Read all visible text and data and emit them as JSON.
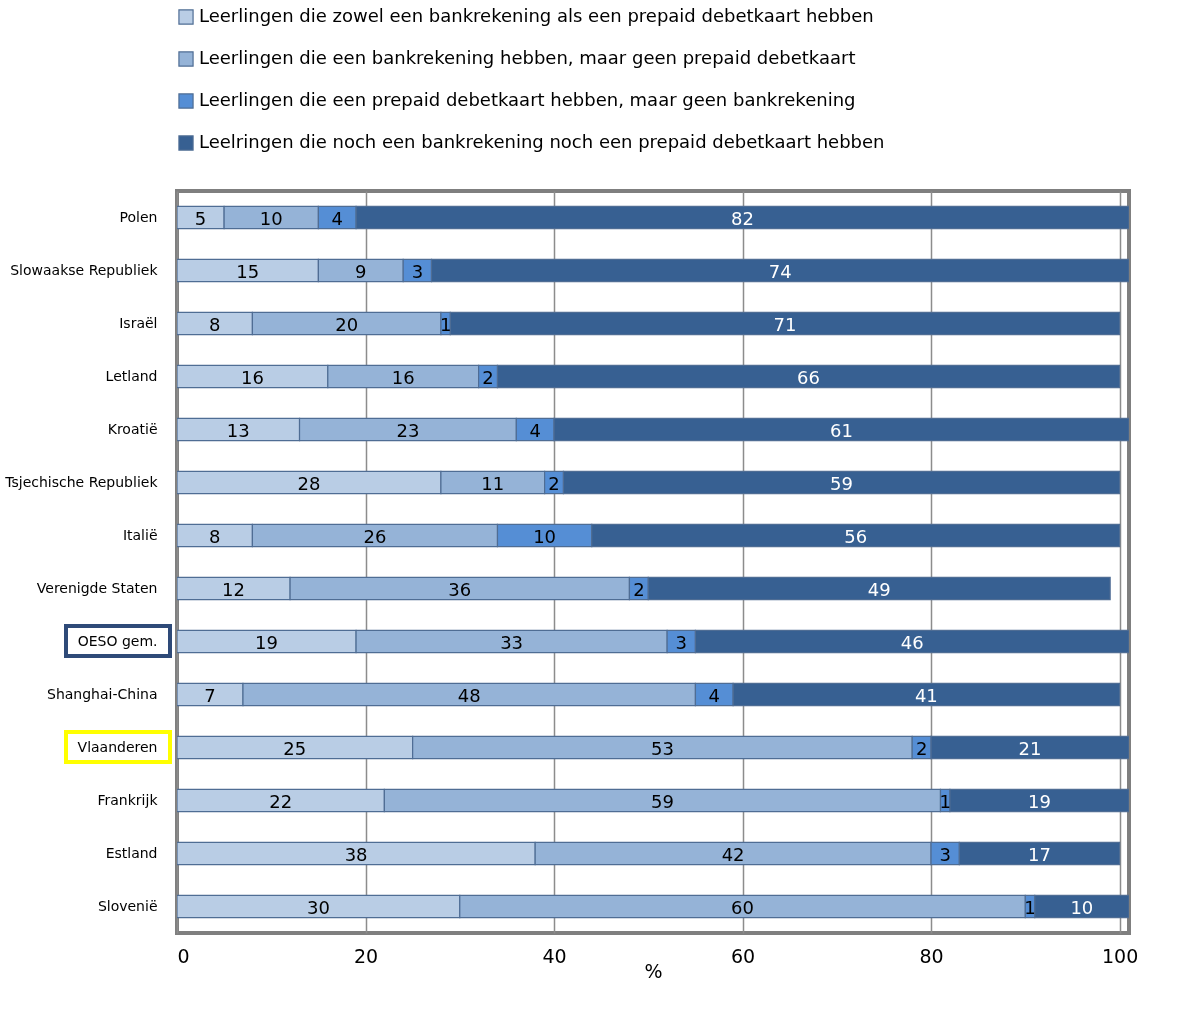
{
  "chart_data": {
    "type": "bar",
    "orientation": "horizontal",
    "stacked": true,
    "xlabel": "%",
    "categories": [
      "Polen",
      "Slowaakse Republiek",
      "Israël",
      "Letland",
      "Kroatië",
      "Tsjechische Republiek",
      "Italië",
      "Verenigde Staten",
      "OESO gem.",
      "Shanghai-China",
      "Vlaanderen",
      "Frankrijk",
      "Estland",
      "Slovenië"
    ],
    "series": [
      {
        "name": "Leerlingen die zowel een bankrekening als een prepaid debetkaart hebben",
        "color": "#b9cde5",
        "values": [
          5,
          15,
          8,
          16,
          13,
          28,
          8,
          12,
          19,
          7,
          25,
          22,
          38,
          30
        ]
      },
      {
        "name": "Leerlingen die een bankrekening hebben, maar geen prepaid debetkaart",
        "color": "#95b3d7",
        "values": [
          10,
          9,
          20,
          16,
          23,
          11,
          26,
          36,
          33,
          48,
          53,
          59,
          42,
          60
        ]
      },
      {
        "name": "Leerlingen die een prepaid debetkaart hebben, maar geen bankrekening",
        "color": "#558ed5",
        "values": [
          4,
          3,
          1,
          2,
          4,
          2,
          10,
          2,
          3,
          4,
          2,
          1,
          3,
          1
        ]
      },
      {
        "name": "Leelringen die noch een bankrekening  noch een prepaid debetkaart hebben",
        "color": "#376092",
        "values": [
          82,
          74,
          71,
          66,
          61,
          59,
          56,
          49,
          46,
          41,
          21,
          19,
          17,
          10
        ]
      }
    ],
    "xlim": [
      0,
      101
    ],
    "xticks": [
      0,
      20,
      40,
      60,
      80,
      100
    ],
    "grid": "x",
    "legend": "top",
    "data_labels": true
  }
}
